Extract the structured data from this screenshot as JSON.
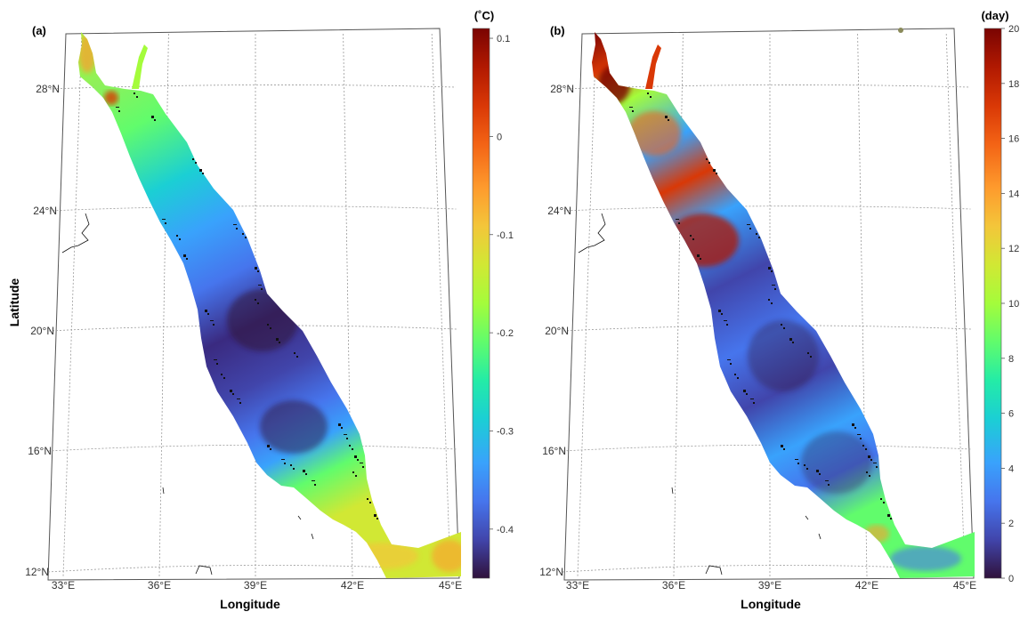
{
  "panels": [
    {
      "label": "(a)",
      "colorbar": {
        "unit": "(˚C)",
        "ticks": [
          "0.1",
          "0",
          "-0.1",
          "-0.2",
          "-0.3",
          "-0.4"
        ],
        "tick_values": [
          0.1,
          0,
          -0.1,
          -0.2,
          -0.3,
          -0.4
        ],
        "range": [
          -0.45,
          0.11
        ],
        "colormap": [
          "#30123b",
          "#4145ab",
          "#4675ed",
          "#39a2fc",
          "#1bcfd4",
          "#24eca6",
          "#61fc6c",
          "#a4fc3b",
          "#d1e834",
          "#f3c63a",
          "#fe9b2d",
          "#f36315",
          "#d93806",
          "#b11901",
          "#7a0402"
        ]
      },
      "ylabel": "Latitude",
      "xlabel": "Longitude"
    },
    {
      "label": "(b)",
      "colorbar": {
        "unit": "(day)",
        "ticks": [
          "20",
          "18",
          "16",
          "14",
          "12",
          "10",
          "8",
          "6",
          "4",
          "2",
          "0"
        ],
        "tick_values": [
          20,
          18,
          16,
          14,
          12,
          10,
          8,
          6,
          4,
          2,
          0
        ],
        "range": [
          0,
          20
        ],
        "colormap": [
          "#30123b",
          "#4145ab",
          "#4675ed",
          "#39a2fc",
          "#1bcfd4",
          "#24eca6",
          "#61fc6c",
          "#a4fc3b",
          "#d1e834",
          "#f3c63a",
          "#fe9b2d",
          "#f36315",
          "#d93806",
          "#b11901",
          "#7a0402"
        ]
      },
      "xlabel": "Longitude"
    }
  ],
  "map": {
    "lat_ticks": [
      "28°N",
      "24°N",
      "20°N",
      "16°N",
      "12°N"
    ],
    "lon_ticks": [
      "33°E",
      "36°E",
      "39°E",
      "42°E",
      "45°E"
    ],
    "lat_values": [
      28,
      24,
      20,
      16,
      12
    ],
    "lon_values": [
      33,
      36,
      39,
      42,
      45
    ],
    "colors": {
      "panel_a_sea": [
        "#a4fc3b",
        "#61fc6c",
        "#1bcfd4",
        "#39a2fc",
        "#4675ed",
        "#4145ab",
        "#3a2a80",
        "#4145ab",
        "#4675ed",
        "#39a2fc",
        "#61fc6c",
        "#d1e834"
      ],
      "panel_b_sea": [
        "#7a0402",
        "#d93806",
        "#61fc6c",
        "#39a2fc",
        "#d93806",
        "#4675ed",
        "#4145ab",
        "#4675ed",
        "#4145ab",
        "#39a2fc",
        "#4675ed",
        "#61fc6c"
      ]
    }
  }
}
